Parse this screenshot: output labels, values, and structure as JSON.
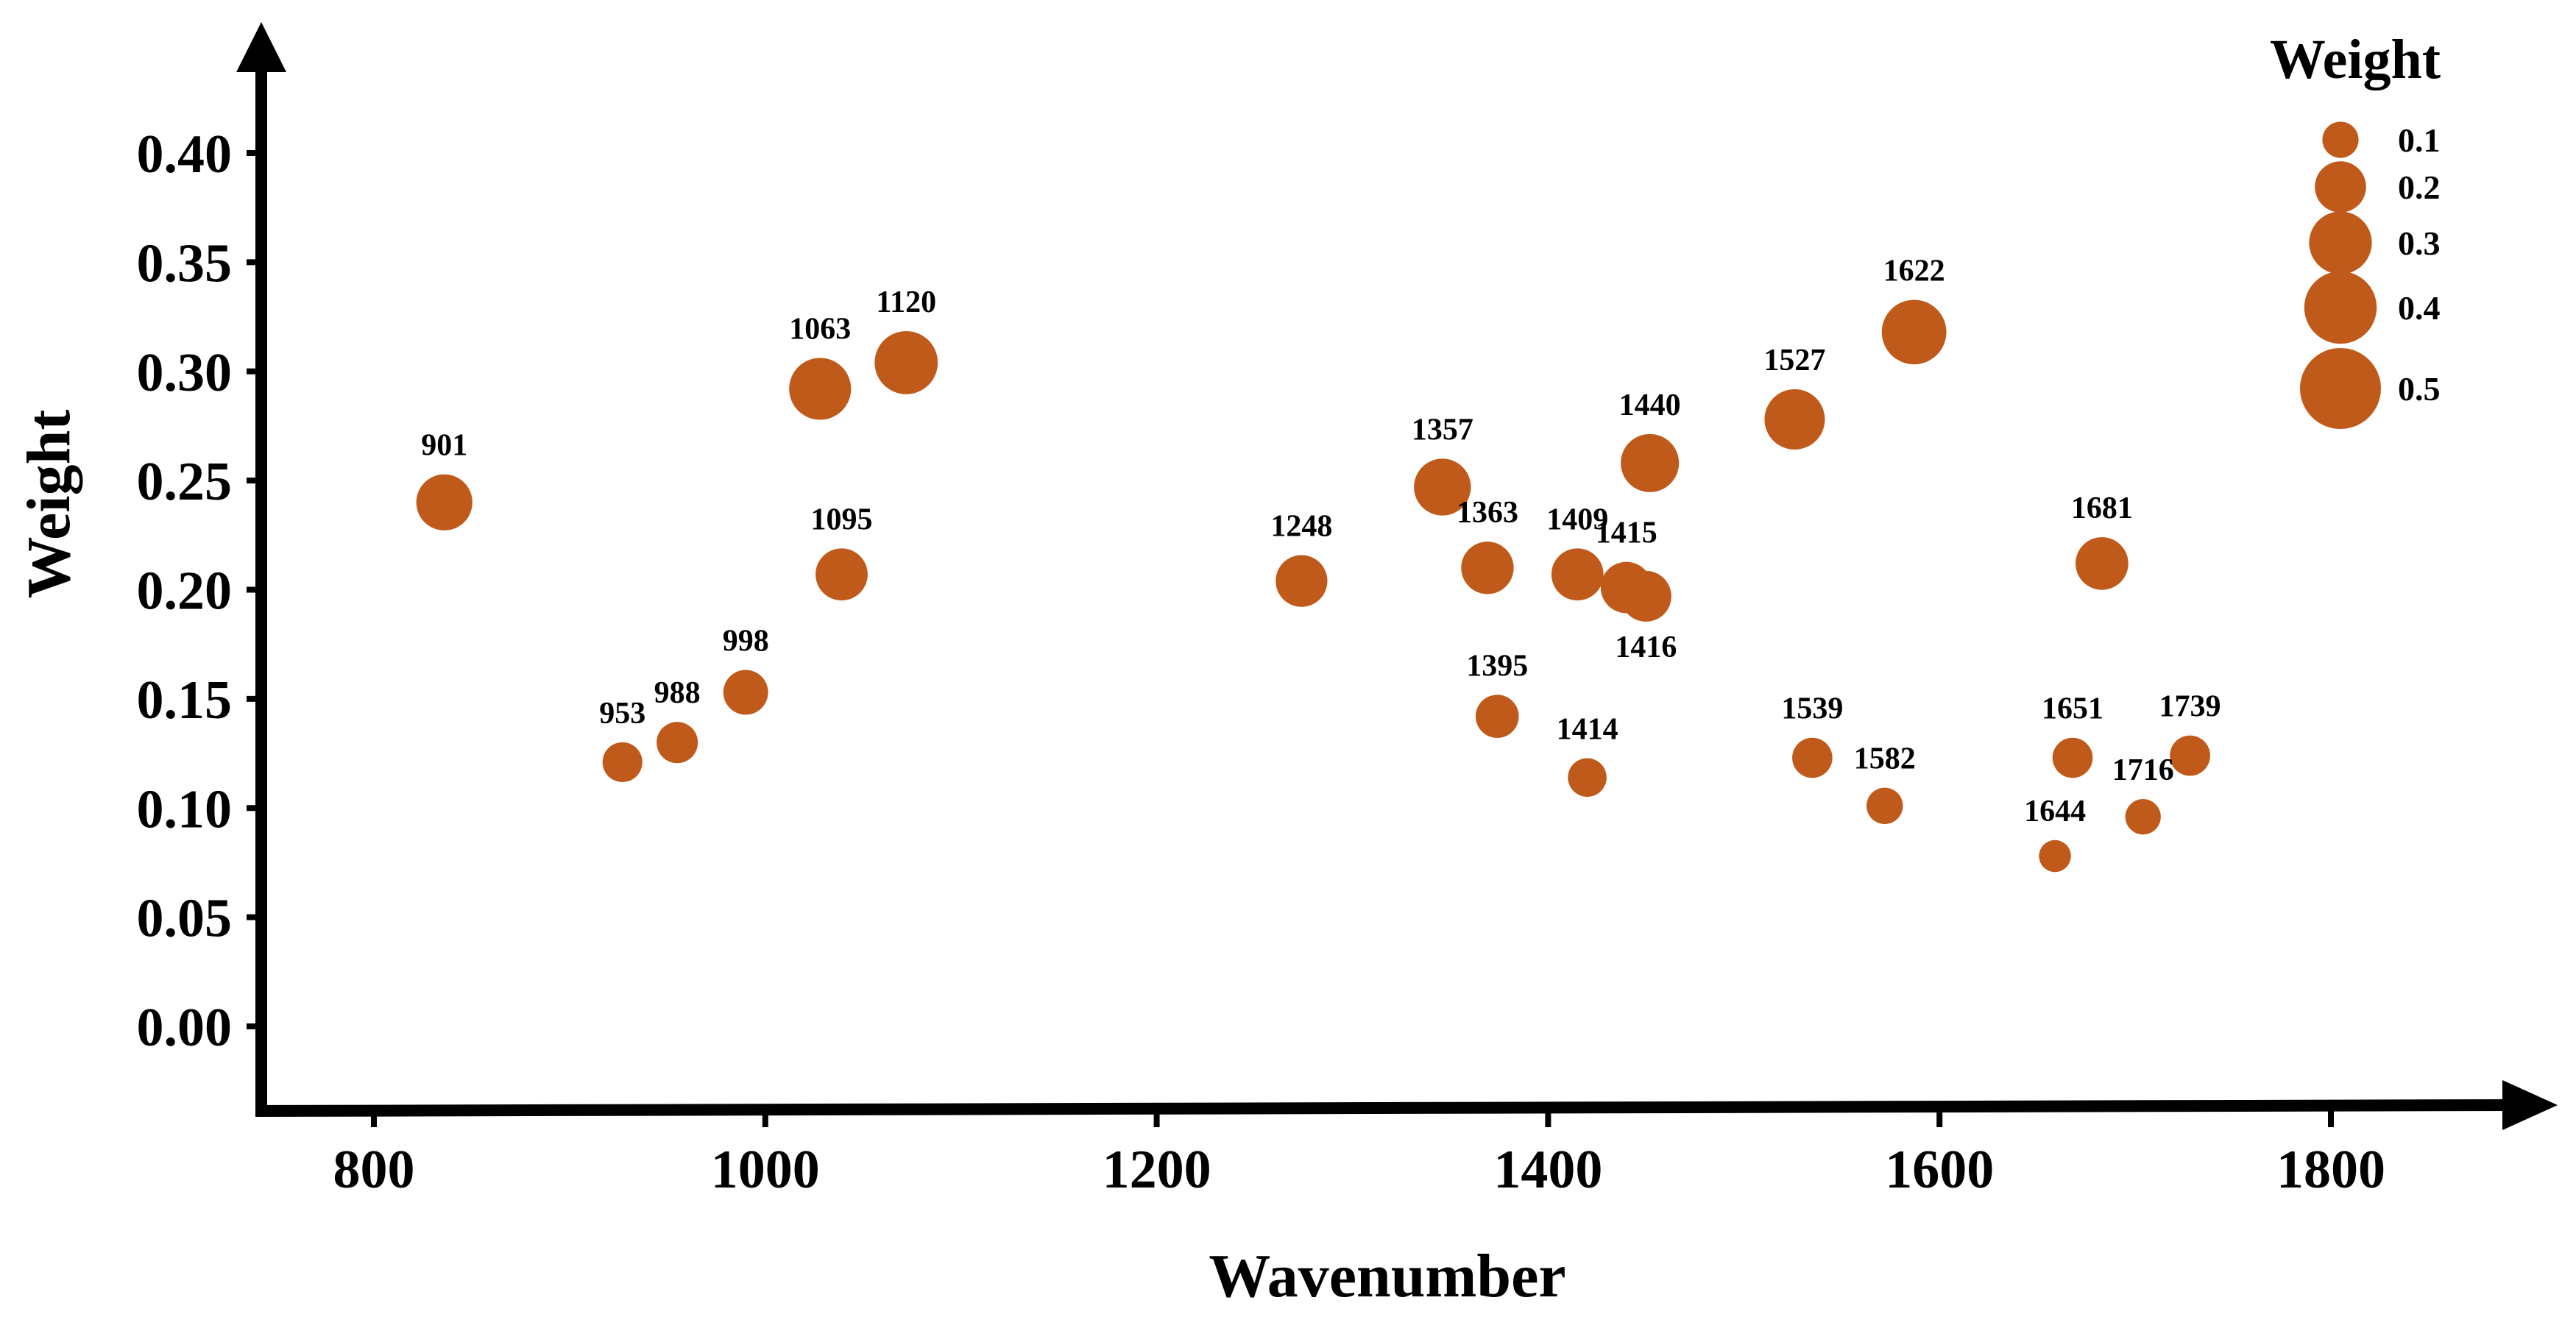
{
  "chart_data": {
    "type": "scatter",
    "title": "",
    "xlabel": "Wavenumber",
    "ylabel": "Weight",
    "xlim": [
      750,
      1900
    ],
    "ylim": [
      -0.05,
      0.44
    ],
    "xticks": [
      800,
      1000,
      1200,
      1400,
      1600,
      1800
    ],
    "yticks": [
      0.0,
      0.05,
      0.1,
      0.15,
      0.2,
      0.25,
      0.3,
      0.35,
      0.4
    ],
    "xtick_labels": [
      "800",
      "1000",
      "1200",
      "1400",
      "1600",
      "1800"
    ],
    "ytick_labels": [
      "0.00",
      "0.05",
      "0.10",
      "0.15",
      "0.20",
      "0.25",
      "0.30",
      "0.35",
      "0.40"
    ],
    "grid": false,
    "color": "#c05a1a",
    "size_encoding": "Weight",
    "legend": {
      "title": "Weight",
      "position": "top-right",
      "entries": [
        {
          "label": "0.1",
          "size": 0.1
        },
        {
          "label": "0.2",
          "size": 0.2
        },
        {
          "label": "0.3",
          "size": 0.3
        },
        {
          "label": "0.4",
          "size": 0.4
        },
        {
          "label": "0.5",
          "size": 0.5
        }
      ]
    },
    "points": [
      {
        "label": "901",
        "x": 836,
        "y": 0.24,
        "weight": 0.24,
        "label_pos": "above"
      },
      {
        "label": "953",
        "x": 927,
        "y": 0.121,
        "weight": 0.121,
        "label_pos": "above"
      },
      {
        "label": "988",
        "x": 955,
        "y": 0.13,
        "weight": 0.13,
        "label_pos": "above"
      },
      {
        "label": "998",
        "x": 990,
        "y": 0.153,
        "weight": 0.153,
        "label_pos": "above"
      },
      {
        "label": "1063",
        "x": 1028,
        "y": 0.292,
        "weight": 0.292,
        "label_pos": "above"
      },
      {
        "label": "1095",
        "x": 1039,
        "y": 0.207,
        "weight": 0.207,
        "label_pos": "above"
      },
      {
        "label": "1120",
        "x": 1072,
        "y": 0.304,
        "weight": 0.304,
        "label_pos": "above"
      },
      {
        "label": "1248",
        "x": 1274,
        "y": 0.204,
        "weight": 0.204,
        "label_pos": "above"
      },
      {
        "label": "1357",
        "x": 1346,
        "y": 0.247,
        "weight": 0.247,
        "label_pos": "above"
      },
      {
        "label": "1363",
        "x": 1369,
        "y": 0.21,
        "weight": 0.21,
        "label_pos": "above"
      },
      {
        "label": "1395",
        "x": 1374,
        "y": 0.142,
        "weight": 0.142,
        "label_pos": "above"
      },
      {
        "label": "1409",
        "x": 1415,
        "y": 0.207,
        "weight": 0.207,
        "label_pos": "above"
      },
      {
        "label": "1414",
        "x": 1420,
        "y": 0.114,
        "weight": 0.114,
        "label_pos": "above"
      },
      {
        "label": "1415",
        "x": 1440,
        "y": 0.201,
        "weight": 0.201,
        "label_pos": "above"
      },
      {
        "label": "1416",
        "x": 1450,
        "y": 0.197,
        "weight": 0.197,
        "label_pos": "below"
      },
      {
        "label": "1440",
        "x": 1452,
        "y": 0.258,
        "weight": 0.258,
        "label_pos": "above"
      },
      {
        "label": "1527",
        "x": 1526,
        "y": 0.278,
        "weight": 0.278,
        "label_pos": "above"
      },
      {
        "label": "1539",
        "x": 1535,
        "y": 0.123,
        "weight": 0.123,
        "label_pos": "above"
      },
      {
        "label": "1582",
        "x": 1572,
        "y": 0.101,
        "weight": 0.101,
        "label_pos": "above"
      },
      {
        "label": "1622",
        "x": 1587,
        "y": 0.318,
        "weight": 0.318,
        "label_pos": "above"
      },
      {
        "label": "1644",
        "x": 1659,
        "y": 0.078,
        "weight": 0.078,
        "label_pos": "above"
      },
      {
        "label": "1651",
        "x": 1668,
        "y": 0.123,
        "weight": 0.123,
        "label_pos": "above"
      },
      {
        "label": "1681",
        "x": 1683,
        "y": 0.212,
        "weight": 0.212,
        "label_pos": "above"
      },
      {
        "label": "1716",
        "x": 1704,
        "y": 0.096,
        "weight": 0.096,
        "label_pos": "above"
      },
      {
        "label": "1739",
        "x": 1728,
        "y": 0.124,
        "weight": 0.124,
        "label_pos": "above"
      }
    ]
  }
}
